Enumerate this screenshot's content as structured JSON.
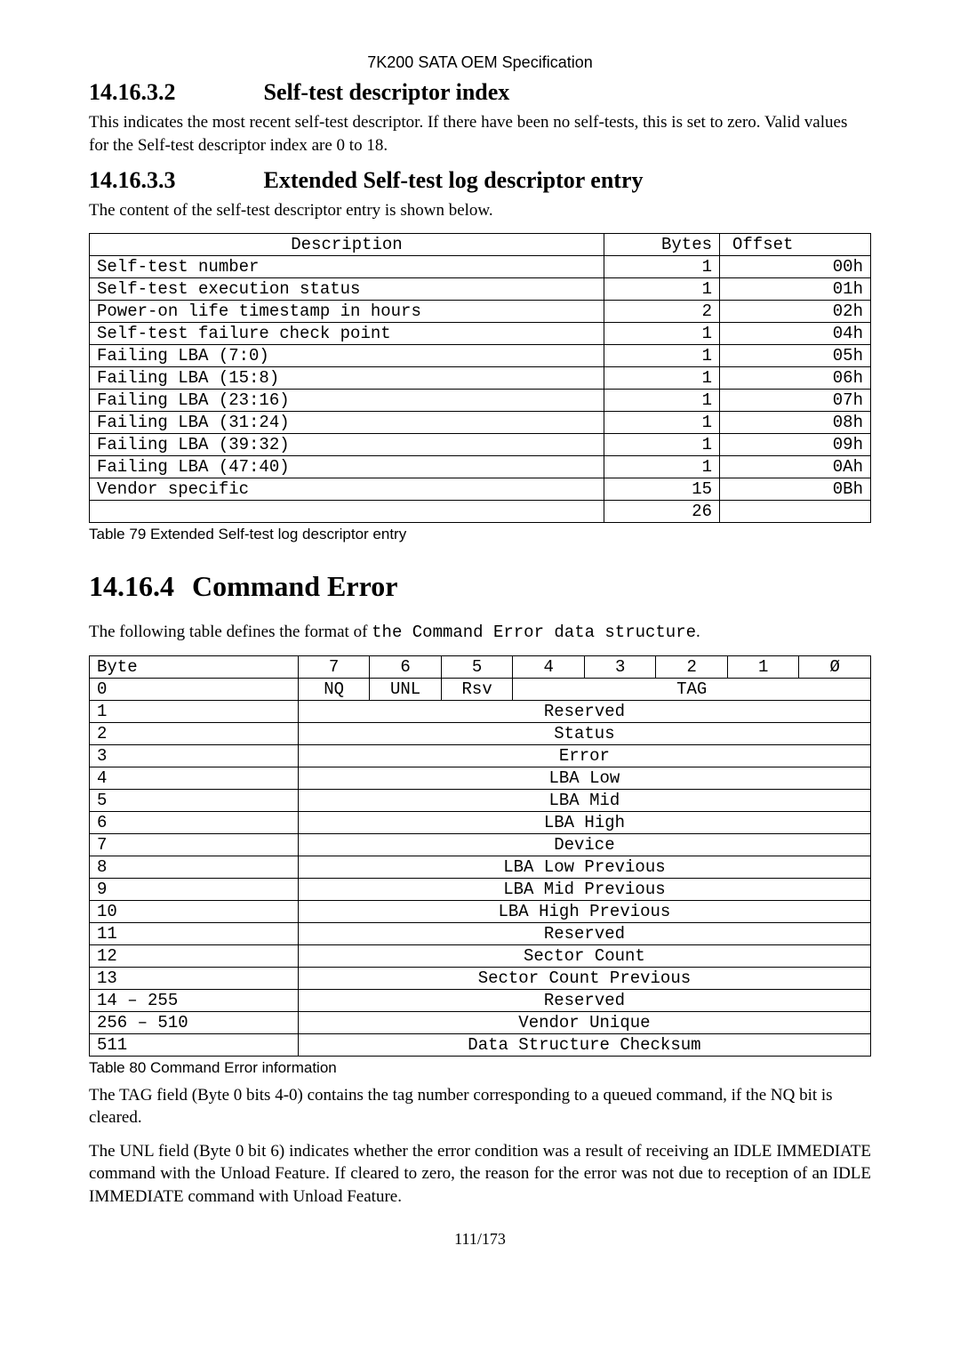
{
  "header": {
    "spec": "7K200 SATA OEM Specification"
  },
  "s1": {
    "num": "14.16.3.2",
    "title": "Self-test descriptor index",
    "p1": "This indicates the most recent self-test descriptor. If there have been no self-tests, this is set to zero. Valid values for the Self-test descriptor index are 0 to 18."
  },
  "s2": {
    "num": "14.16.3.3",
    "title": "Extended Self-test log descriptor entry",
    "p1": "The content of the self-test descriptor entry is shown below."
  },
  "t1": {
    "head": {
      "c1": "Description",
      "c2": "Bytes",
      "c3": "Offset"
    },
    "rows": [
      {
        "c1": "Self-test number",
        "c2": "1",
        "c3": "00h"
      },
      {
        "c1": "Self-test execution status",
        "c2": "1",
        "c3": "01h"
      },
      {
        "c1": "Power-on life timestamp in hours",
        "c2": "2",
        "c3": "02h"
      },
      {
        "c1": "Self-test failure check point",
        "c2": "1",
        "c3": "04h"
      },
      {
        "c1": "Failing LBA (7:0)",
        "c2": "1",
        "c3": "05h"
      },
      {
        "c1": "Failing LBA (15:8)",
        "c2": "1",
        "c3": "06h"
      },
      {
        "c1": "Failing LBA (23:16)",
        "c2": "1",
        "c3": "07h"
      },
      {
        "c1": "Failing LBA (31:24)",
        "c2": "1",
        "c3": "08h"
      },
      {
        "c1": "Failing LBA (39:32)",
        "c2": "1",
        "c3": "09h"
      },
      {
        "c1": "Failing LBA (47:40)",
        "c2": "1",
        "c3": "0Ah"
      },
      {
        "c1": "Vendor specific",
        "c2": "15",
        "c3": "0Bh"
      },
      {
        "c1": "",
        "c2": "26",
        "c3": ""
      }
    ],
    "caption": "Table 79 Extended Self-test log descriptor entry"
  },
  "s3": {
    "num": "14.16.4",
    "title": "Command Error",
    "p1a": "The following table defines the format of ",
    "p1b": "the Command Error data structure",
    "p1c": "."
  },
  "t2": {
    "head": {
      "byte": "Byte",
      "b7": "7",
      "b6": "6",
      "b5": "5",
      "b4": "4",
      "b3": "3",
      "b2": "2",
      "b1": "1",
      "b0": "Ø"
    },
    "r0": {
      "byte": "0",
      "nq": "NQ",
      "unl": "UNL",
      "rsv": "Rsv",
      "tag": "TAG"
    },
    "rows": [
      {
        "byte": "1",
        "val": "Reserved"
      },
      {
        "byte": "2",
        "val": "Status"
      },
      {
        "byte": "3",
        "val": "Error"
      },
      {
        "byte": "4",
        "val": "LBA Low"
      },
      {
        "byte": "5",
        "val": "LBA Mid"
      },
      {
        "byte": "6",
        "val": "LBA High"
      },
      {
        "byte": "7",
        "val": "Device"
      },
      {
        "byte": "8",
        "val": "LBA Low Previous"
      },
      {
        "byte": "9",
        "val": "LBA Mid Previous"
      },
      {
        "byte": "10",
        "val": "LBA High Previous"
      },
      {
        "byte": "11",
        "val": "Reserved"
      },
      {
        "byte": "12",
        "val": "Sector Count"
      },
      {
        "byte": "13",
        "val": "Sector Count Previous"
      },
      {
        "byte": "14 – 255",
        "val": "Reserved"
      },
      {
        "byte": "256 – 510",
        "val": "Vendor Unique"
      },
      {
        "byte": "511",
        "val": "Data Structure Checksum"
      }
    ],
    "caption": "Table 80 Command Error information"
  },
  "p_tag": "The TAG field (Byte 0 bits 4-0) contains the tag number corresponding to a queued command, if the NQ bit is cleared.",
  "p_unl": "The UNL field (Byte 0 bit 6) indicates whether the error condition was a result of receiving an IDLE IMMEDIATE command with the Unload Feature.  If cleared to zero, the reason for the error was not due to reception of an IDLE IMMEDIATE command with Unload Feature.",
  "page": "111/173"
}
